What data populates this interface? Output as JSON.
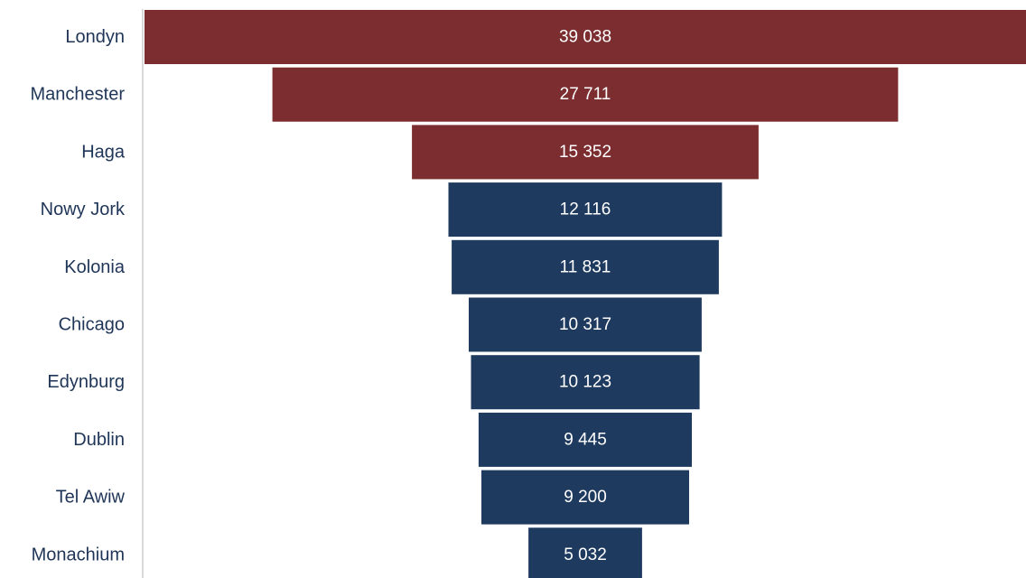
{
  "chart_data": {
    "type": "bar",
    "orientation": "horizontal",
    "style": "funnel",
    "categories": [
      "Londyn",
      "Manchester",
      "Haga",
      "Nowy Jork",
      "Kolonia",
      "Chicago",
      "Edynburg",
      "Dublin",
      "Tel Awiw",
      "Monachium"
    ],
    "values": [
      39038,
      27711,
      15352,
      12116,
      11831,
      10317,
      10123,
      9445,
      9200,
      5032
    ],
    "value_labels": [
      "39 038",
      "27 711",
      "15 352",
      "12 116",
      "11 831",
      "10 317",
      "10 123",
      "9 445",
      "9 200",
      "5 032"
    ],
    "highlight_count": 3,
    "xlim": [
      0,
      39038
    ],
    "grid": false,
    "legend": "none",
    "title": "",
    "xlabel": "",
    "ylabel": "",
    "colors": {
      "highlight": "#7b2d2f",
      "default": "#1f3a5f",
      "axis": "#d9d9d9"
    }
  }
}
